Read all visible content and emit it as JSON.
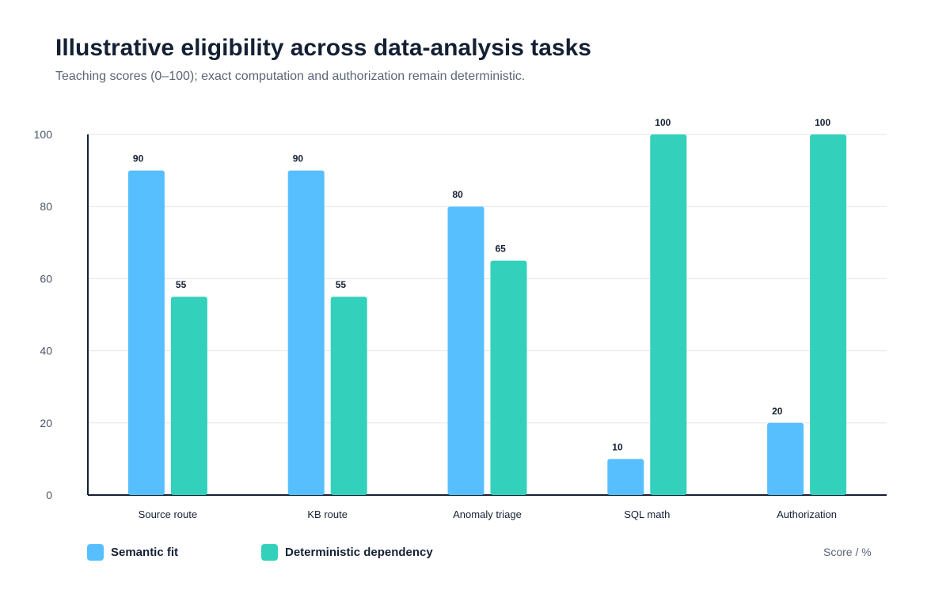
{
  "chart_data": {
    "type": "bar",
    "title": "Illustrative eligibility across data-analysis tasks",
    "subtitle": "Teaching scores (0–100); exact computation and authorization remain deterministic.",
    "categories": [
      "Source route",
      "KB route",
      "Anomaly triage",
      "SQL math",
      "Authorization"
    ],
    "series": [
      {
        "name": "Semantic fit",
        "values": [
          90,
          90,
          80,
          10,
          20
        ],
        "color": "#58bfff"
      },
      {
        "name": "Deterministic dependency",
        "values": [
          55,
          55,
          65,
          100,
          100
        ],
        "color": "#33d1bb"
      }
    ],
    "ylim": [
      0,
      100
    ],
    "yticks": [
      0,
      20,
      40,
      60,
      80,
      100
    ],
    "grid": true,
    "legend_position": "bottom-left",
    "unit_label": "Score / %"
  }
}
